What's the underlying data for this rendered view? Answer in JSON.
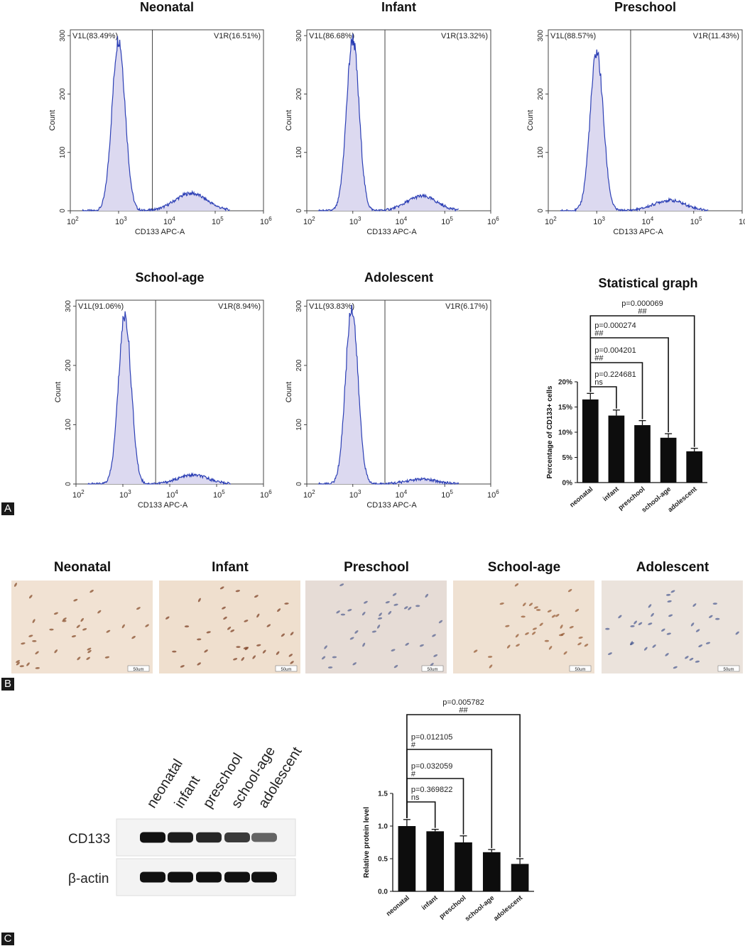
{
  "panel_labels": [
    "A",
    "B",
    "C"
  ],
  "chart_data": [
    {
      "type": "area",
      "title": "Neonatal",
      "xlabel": "CD133 APC-A",
      "ylabel": "Count",
      "xscale": "log",
      "xlim": [
        100,
        1000000
      ],
      "ylim": [
        0,
        310
      ],
      "yticks": [
        "0",
        "100",
        "200",
        "300"
      ],
      "gate_labels": [
        "V1L(83.49%)",
        "V1R(16.51%)"
      ],
      "gate_position": 5000,
      "peak": 1000,
      "peak_height": 295,
      "tail_height": 30
    },
    {
      "type": "area",
      "title": "Infant",
      "xlabel": "CD133 APC-A",
      "ylabel": "Count",
      "xscale": "log",
      "xlim": [
        100,
        1000000
      ],
      "ylim": [
        0,
        310
      ],
      "yticks": [
        "0",
        "100",
        "200",
        "300"
      ],
      "gate_labels": [
        "V1L(86.68%)",
        "V1R(13.32%)"
      ],
      "gate_position": 5000,
      "peak": 1000,
      "peak_height": 295,
      "tail_height": 25
    },
    {
      "type": "area",
      "title": "Preschool",
      "xlabel": "CD133 APC-A",
      "ylabel": "Count",
      "xscale": "log",
      "xlim": [
        100,
        1000000
      ],
      "ylim": [
        0,
        310
      ],
      "yticks": [
        "0",
        "100",
        "200",
        "300"
      ],
      "gate_labels": [
        "V1L(88.57%)",
        "V1R(11.43%)"
      ],
      "gate_position": 5000,
      "peak": 1000,
      "peak_height": 272,
      "tail_height": 18
    },
    {
      "type": "area",
      "title": "School-age",
      "xlabel": "CD133 APC-A",
      "ylabel": "Count",
      "xscale": "log",
      "xlim": [
        100,
        1000000
      ],
      "ylim": [
        0,
        310
      ],
      "yticks": [
        "0",
        "100",
        "200",
        "300"
      ],
      "gate_labels": [
        "V1L(91.06%)",
        "V1R(8.94%)"
      ],
      "gate_position": 5000,
      "peak": 1100,
      "peak_height": 285,
      "tail_height": 15
    },
    {
      "type": "area",
      "title": "Adolescent",
      "xlabel": "CD133 APC-A",
      "ylabel": "Count",
      "xscale": "log",
      "xlim": [
        100,
        1000000
      ],
      "ylim": [
        0,
        310
      ],
      "yticks": [
        "0",
        "100",
        "200",
        "300"
      ],
      "gate_labels": [
        "V1L(93.83%)",
        "V1R(6.17%)"
      ],
      "gate_position": 5000,
      "peak": 950,
      "peak_height": 298,
      "tail_height": 8
    },
    {
      "type": "bar",
      "title": "Statistical graph",
      "ylabel": "Percentage of CD133+ cells",
      "categories": [
        "neonatal",
        "infant",
        "preschool",
        "school-age",
        "adolescent"
      ],
      "values": [
        16.5,
        13.3,
        11.4,
        8.9,
        6.2
      ],
      "errors": [
        1.2,
        1.1,
        0.9,
        0.8,
        0.6
      ],
      "ylim": [
        0,
        20
      ],
      "yticks": [
        "0%",
        "5%",
        "10%",
        "15%",
        "20%"
      ],
      "comparisons": [
        {
          "to": 1,
          "p": "p=0.224681",
          "sig": "ns"
        },
        {
          "to": 2,
          "p": "p=0.004201",
          "sig": "##"
        },
        {
          "to": 3,
          "p": "p=0.000274",
          "sig": "##"
        },
        {
          "to": 4,
          "p": "p=0.000069",
          "sig": "##"
        }
      ]
    },
    {
      "type": "bar",
      "ylabel": "Relative protein level",
      "categories": [
        "neonatal",
        "infant",
        "preschool",
        "school-age",
        "adolescent"
      ],
      "values": [
        1.0,
        0.92,
        0.75,
        0.6,
        0.42
      ],
      "errors": [
        0.1,
        0.03,
        0.1,
        0.04,
        0.08
      ],
      "ylim": [
        0,
        1.5
      ],
      "yticks": [
        "0.0",
        "0.5",
        "1.0",
        "1.5"
      ],
      "comparisons": [
        {
          "to": 1,
          "p": "p=0.369822",
          "sig": "ns"
        },
        {
          "to": 2,
          "p": "p=0.032059",
          "sig": "#"
        },
        {
          "to": 3,
          "p": "p=0.012105",
          "sig": "#"
        },
        {
          "to": 4,
          "p": "p=0.005782",
          "sig": "##"
        }
      ]
    }
  ],
  "histology": {
    "titles": [
      "Neonatal",
      "Infant",
      "Preschool",
      "School-age",
      "Adolescent"
    ],
    "scale_bar": "50um"
  },
  "western_blot": {
    "lanes": [
      "neonatal",
      "infant",
      "preschool",
      "school-age",
      "adolescent"
    ],
    "rows": [
      {
        "label": "CD133",
        "intensity": [
          1.0,
          0.92,
          0.85,
          0.72,
          0.45
        ]
      },
      {
        "label": "β-actin",
        "intensity": [
          1.0,
          1.0,
          1.0,
          1.0,
          1.0
        ]
      }
    ]
  }
}
